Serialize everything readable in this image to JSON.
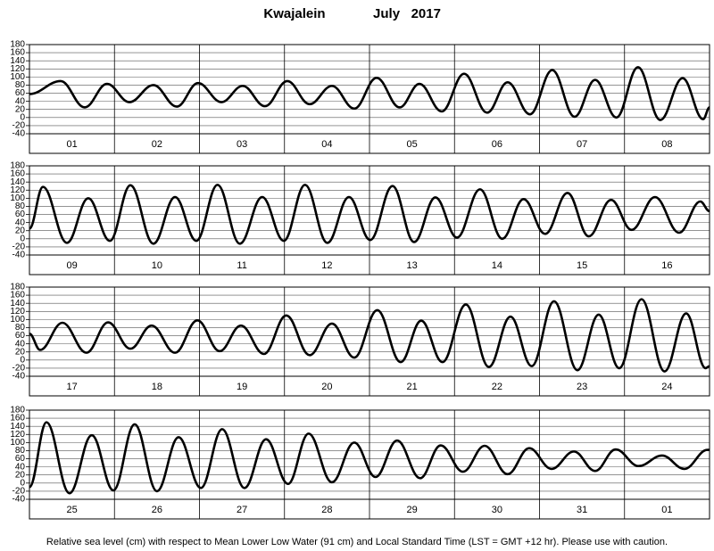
{
  "title": "Kwajalein",
  "period": "July   2017",
  "footnote": "Relative sea level (cm) with respect to Mean Lower Low Water (91 cm) and Local Standard Time (LST = GMT +12 hr). Please use with caution.",
  "chart_data": [
    {
      "type": "line",
      "color": "#000000",
      "categories": [
        "01",
        "02",
        "03",
        "04",
        "05",
        "06",
        "07",
        "08"
      ],
      "x": [
        0,
        8.8,
        15.6,
        21.9,
        28.2,
        35.0,
        41.6,
        47.6,
        54.2,
        60.2,
        66.5,
        72.8,
        79.1,
        85.4,
        91.7,
        98.0,
        104.5,
        110.1,
        116.4,
        122.7,
        129.2,
        135.0,
        141.3,
        147.6,
        153.9,
        159.7,
        165.7,
        171.8,
        178.1,
        184.4,
        190.2,
        192
      ],
      "values": [
        58,
        90,
        25,
        83,
        38,
        80,
        27,
        85,
        38,
        78,
        28,
        90,
        33,
        78,
        22,
        98,
        25,
        83,
        15,
        108,
        12,
        87,
        8,
        117,
        2,
        93,
        0,
        124,
        -6,
        97,
        -4,
        25
      ],
      "xlim": [
        0,
        192
      ],
      "ylim": [
        -40,
        180
      ],
      "yticks": [
        -40,
        -20,
        0,
        20,
        40,
        60,
        80,
        100,
        120,
        140,
        160,
        180
      ]
    },
    {
      "type": "line",
      "color": "#000000",
      "categories": [
        "09",
        "10",
        "11",
        "12",
        "13",
        "14",
        "15",
        "16"
      ],
      "x": [
        0,
        3.8,
        10.6,
        16.6,
        22.7,
        28.5,
        35.0,
        41.1,
        47.1,
        53.1,
        59.4,
        65.7,
        71.8,
        77.8,
        84.1,
        90.2,
        96.2,
        102.5,
        108.6,
        114.6,
        120.7,
        127.2,
        133.5,
        139.5,
        145.6,
        151.9,
        157.9,
        164.2,
        170.0,
        176.6,
        183.4,
        189.4,
        192
      ],
      "values": [
        25,
        128,
        -10,
        100,
        -5,
        132,
        -12,
        103,
        -5,
        133,
        -12,
        103,
        -5,
        133,
        -10,
        103,
        -3,
        130,
        -8,
        102,
        3,
        122,
        0,
        98,
        12,
        113,
        6,
        96,
        22,
        103,
        15,
        92,
        68
      ],
      "xlim": [
        0,
        192
      ],
      "ylim": [
        -40,
        180
      ],
      "yticks": [
        -40,
        -20,
        0,
        20,
        40,
        60,
        80,
        100,
        120,
        140,
        160,
        180
      ]
    },
    {
      "type": "line",
      "color": "#000000",
      "categories": [
        "17",
        "18",
        "19",
        "20",
        "21",
        "22",
        "23",
        "24"
      ],
      "x": [
        0,
        3.0,
        9.3,
        16.1,
        22.2,
        28.5,
        34.5,
        41.1,
        47.4,
        53.7,
        59.7,
        66.2,
        72.5,
        79.1,
        85.4,
        91.7,
        98.2,
        104.8,
        110.6,
        116.6,
        123.2,
        129.7,
        135.8,
        141.8,
        148.1,
        154.7,
        160.7,
        166.5,
        172.8,
        179.3,
        185.4,
        190.9,
        192
      ],
      "values": [
        65,
        25,
        92,
        18,
        93,
        28,
        85,
        18,
        98,
        22,
        85,
        15,
        110,
        12,
        90,
        6,
        123,
        -5,
        97,
        -5,
        137,
        -17,
        107,
        -15,
        145,
        -25,
        112,
        -20,
        150,
        -28,
        115,
        -20,
        -15
      ],
      "xlim": [
        0,
        192
      ],
      "ylim": [
        -40,
        180
      ],
      "yticks": [
        -40,
        -20,
        0,
        20,
        40,
        60,
        80,
        100,
        120,
        140,
        160,
        180
      ]
    },
    {
      "type": "line",
      "color": "#000000",
      "categories": [
        "25",
        "26",
        "27",
        "28",
        "29",
        "30",
        "31",
        "01"
      ],
      "x": [
        0,
        4.8,
        11.3,
        17.6,
        23.7,
        29.7,
        36.0,
        42.1,
        48.4,
        54.4,
        60.7,
        66.8,
        73.0,
        78.8,
        85.4,
        91.7,
        97.7,
        103.8,
        110.3,
        116.1,
        122.4,
        128.5,
        135.0,
        141.1,
        147.4,
        153.7,
        159.7,
        165.5,
        172.0,
        178.6,
        184.9,
        191.4,
        192
      ],
      "values": [
        -10,
        150,
        -25,
        118,
        -18,
        145,
        -20,
        113,
        -12,
        133,
        -12,
        108,
        -2,
        122,
        2,
        100,
        15,
        105,
        12,
        93,
        28,
        92,
        22,
        86,
        35,
        78,
        30,
        83,
        42,
        68,
        35,
        82,
        82
      ],
      "xlim": [
        0,
        192
      ],
      "ylim": [
        -40,
        180
      ],
      "yticks": [
        -40,
        -20,
        0,
        20,
        40,
        60,
        80,
        100,
        120,
        140,
        160,
        180
      ]
    }
  ]
}
